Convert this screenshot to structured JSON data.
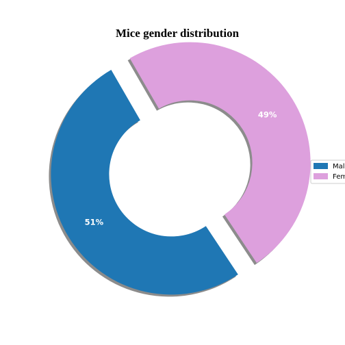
{
  "chart_data": {
    "type": "pie",
    "title": "Mice gender distribution",
    "categories": [
      "Male",
      "Female"
    ],
    "values": [
      51,
      49
    ],
    "labels": [
      "51%",
      "49%"
    ],
    "colors": [
      "#1f77b4",
      "#dda0dd"
    ],
    "shadow": true,
    "legend": {
      "placement": "right",
      "entries": [
        "Male",
        "Female"
      ],
      "visible_text": [
        "Mal",
        "Fem"
      ]
    }
  }
}
